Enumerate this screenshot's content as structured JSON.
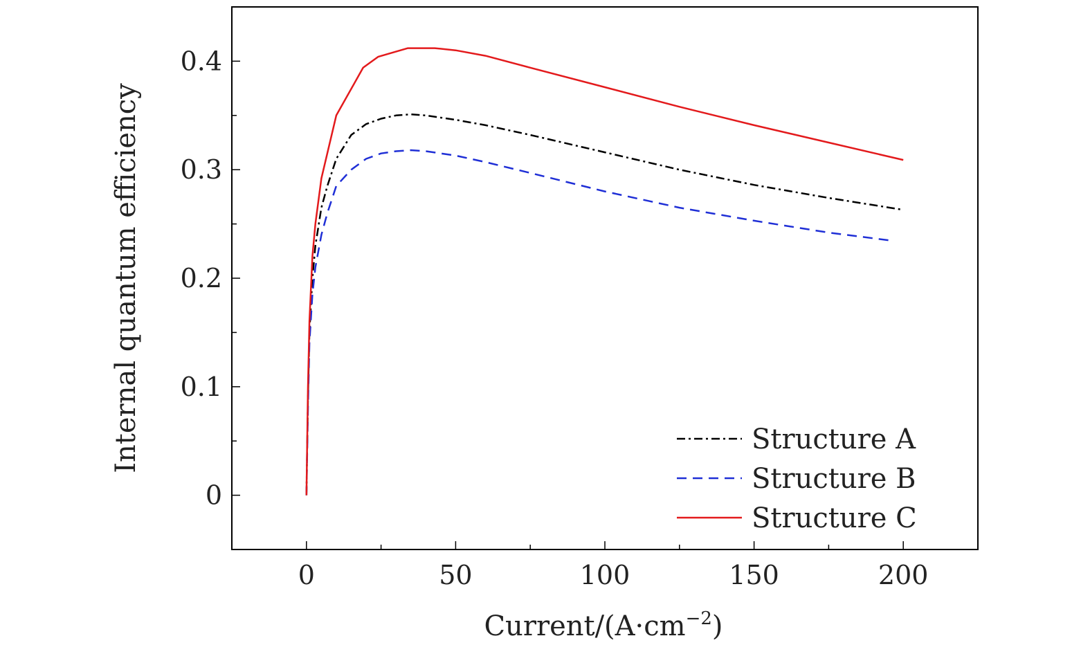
{
  "chart_data": {
    "type": "line",
    "xlabel": "Current/(A·cm",
    "xlabel_sup": "−2",
    "xlabel_close": ")",
    "ylabel": "Internal quantum efficiency",
    "xlim": [
      -25,
      225
    ],
    "ylim": [
      -0.05,
      0.45
    ],
    "xticks": [
      0,
      50,
      100,
      150,
      200
    ],
    "xtick_labels": [
      "0",
      "50",
      "100",
      "150",
      "200"
    ],
    "yticks": [
      0,
      0.1,
      0.2,
      0.3,
      0.4
    ],
    "ytick_labels": [
      "0",
      "0.1",
      "0.2",
      "0.3",
      "0.4"
    ],
    "grid": false,
    "legend_position": "bottom-right",
    "series": [
      {
        "name": "Structure A",
        "color": "#000000",
        "dash": "12,5,3,5",
        "x": [
          0,
          0.5,
          1,
          2,
          3,
          5,
          7,
          10,
          15,
          20,
          25,
          30,
          35,
          40,
          50,
          60,
          75,
          100,
          125,
          150,
          175,
          200
        ],
        "y": [
          0,
          0.09,
          0.15,
          0.2,
          0.23,
          0.265,
          0.285,
          0.31,
          0.332,
          0.342,
          0.347,
          0.35,
          0.351,
          0.35,
          0.346,
          0.341,
          0.332,
          0.316,
          0.3,
          0.286,
          0.274,
          0.263
        ]
      },
      {
        "name": "Structure B",
        "color": "#1f2fd6",
        "dash": "14,9",
        "x": [
          0,
          0.5,
          1,
          2,
          3,
          5,
          7,
          10,
          15,
          20,
          25,
          30,
          35,
          40,
          50,
          60,
          75,
          100,
          125,
          150,
          175,
          195
        ],
        "y": [
          0,
          0.08,
          0.14,
          0.185,
          0.21,
          0.24,
          0.26,
          0.285,
          0.3,
          0.31,
          0.315,
          0.317,
          0.318,
          0.317,
          0.313,
          0.307,
          0.297,
          0.28,
          0.265,
          0.253,
          0.242,
          0.235
        ]
      },
      {
        "name": "Structure C",
        "color": "#e31a1c",
        "dash": "",
        "x": [
          0,
          0.5,
          1,
          2,
          3,
          5,
          10,
          19,
          24,
          34,
          43,
          50,
          60,
          75,
          100,
          125,
          150,
          175,
          200
        ],
        "y": [
          0,
          0.1,
          0.16,
          0.22,
          0.25,
          0.292,
          0.35,
          0.394,
          0.404,
          0.412,
          0.412,
          0.41,
          0.405,
          0.394,
          0.376,
          0.358,
          0.341,
          0.325,
          0.309
        ]
      }
    ]
  }
}
